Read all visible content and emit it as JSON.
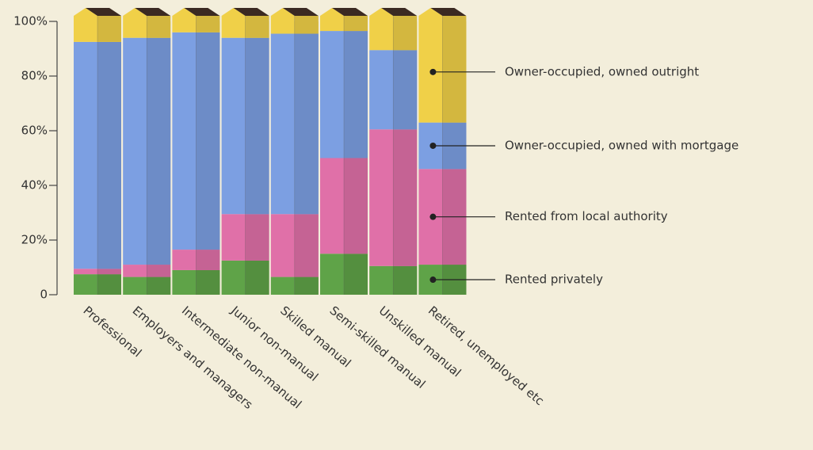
{
  "chart_data": {
    "type": "stacked-bar",
    "categories": [
      "Professional",
      "Employers and managers",
      "Intermediate non-manual",
      "Junior non-manual",
      "Skilled manual",
      "Semi-skilled manual",
      "Unskilled manual",
      "Retired, unemployed etc"
    ],
    "series": [
      {
        "name": "Rented privately",
        "color": "#5fa348",
        "values": [
          7.5,
          6.5,
          9,
          12.5,
          6.5,
          15,
          10.5,
          11
        ]
      },
      {
        "name": "Rented from local authority",
        "color": "#e070a8",
        "values": [
          2,
          4.5,
          7.5,
          17,
          23,
          35,
          50,
          35
        ]
      },
      {
        "name": "Owner-occupied, owned with mortgage",
        "color": "#7c9fe2",
        "values": [
          83,
          83,
          79.5,
          64.5,
          66,
          46.5,
          29,
          17
        ]
      },
      {
        "name": "Owner-occupied, owned outright",
        "color": "#f0d048",
        "values": [
          7.5,
          6,
          4,
          6,
          4.5,
          3.5,
          10.5,
          37
        ]
      }
    ],
    "ylim": [
      0,
      100
    ],
    "yticks": [
      0,
      {
        "value": 20,
        "label": "20%"
      },
      {
        "value": 40,
        "label": "40%"
      },
      {
        "value": 60,
        "label": "60%"
      },
      {
        "value": 80,
        "label": "80%"
      },
      {
        "value": 100,
        "label": "100%"
      }
    ]
  }
}
